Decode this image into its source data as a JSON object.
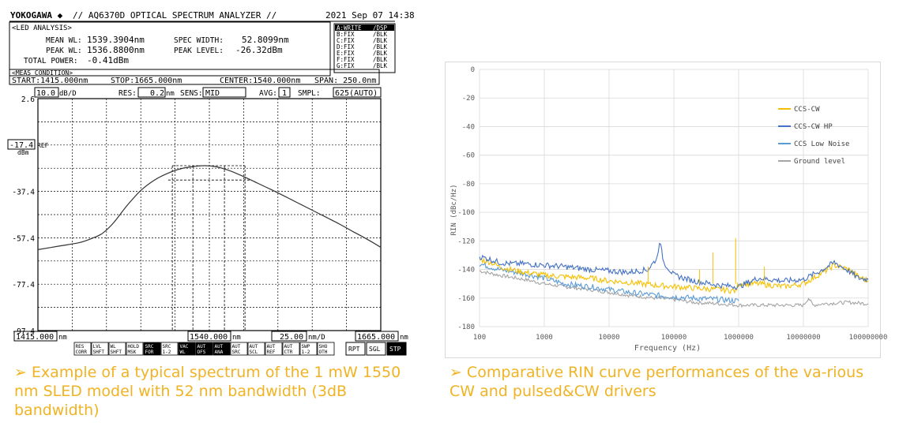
{
  "left_chart": {
    "brand": "YOKOGAWA ◆",
    "title": "// AQ6370D OPTICAL SPECTRUM ANALYZER //",
    "date": "2021 Sep 07 14:38",
    "analysis": {
      "heading": "<LED ANALYSIS>",
      "mean_wl_label": "MEAN WL:",
      "mean_wl_value": "1539.3904nm",
      "peak_wl_label": "PEAK WL:",
      "peak_wl_value": "1536.8800nm",
      "total_power_label": "TOTAL POWER:",
      "total_power_value": "-0.41dBm",
      "spec_width_label": "SPEC WIDTH:",
      "spec_width_value": "52.8099nm",
      "peak_level_label": "PEAK LEVEL:",
      "peak_level_value": "-26.32dBm"
    },
    "trace_status": [
      {
        "trace": "A:WRITE",
        "mode": "/DSP"
      },
      {
        "trace": "B:FIX",
        "mode": "/BLK"
      },
      {
        "trace": "C:FIX",
        "mode": "/BLK"
      },
      {
        "trace": "D:FIX",
        "mode": "/BLK"
      },
      {
        "trace": "E:FIX",
        "mode": "/BLK"
      },
      {
        "trace": "F:FIX",
        "mode": "/BLK"
      },
      {
        "trace": "G:FIX",
        "mode": "/BLK"
      }
    ],
    "meas": {
      "heading": "<MEAS CONDITION>",
      "start": "START:1415.000nm",
      "stop": "STOP:1665.000nm",
      "center": "CENTER:1540.000nm",
      "span": "SPAN: 250.0nm"
    },
    "settings": {
      "scale_value": "10.0",
      "scale_unit": "dB/D",
      "res_label": "RES:",
      "res_value": "0.2",
      "res_unit": "nm",
      "sens_label": "SENS:",
      "sens_value": "MID",
      "avg_label": "AVG:",
      "avg_value": "1",
      "smpl_label": "SMPL:",
      "smpl_value": "625(AUTO)"
    },
    "ref": {
      "value": "-17.4",
      "label": "REF",
      "unit": "dBm"
    },
    "bottom": {
      "start": "1415.000",
      "start_unit": "nm",
      "center": "1540.000",
      "center_unit": "nm",
      "div": "25.00",
      "div_unit": "nm/D",
      "stop": "1665.000",
      "stop_unit": "nm"
    },
    "softkeys": [
      {
        "top": "RES",
        "bot": "CORR"
      },
      {
        "top": "LVL",
        "bot": "SHFT"
      },
      {
        "top": "WL",
        "bot": "SHFT"
      },
      {
        "top": "HOLD",
        "bot": "MSK"
      },
      {
        "top": "SRC",
        "bot": "FOR",
        "inv": true
      },
      {
        "top": "SRC",
        "bot": "1-2"
      },
      {
        "top": "VAC",
        "bot": "WL",
        "inv": true
      },
      {
        "top": "AUT",
        "bot": "OFS",
        "inv": true
      },
      {
        "top": "AUT",
        "bot": "ANA",
        "inv": true
      },
      {
        "top": "AUT",
        "bot": "SRC"
      },
      {
        "top": "AUT",
        "bot": "SCL"
      },
      {
        "top": "AUT",
        "bot": "REF"
      },
      {
        "top": "AUT",
        "bot": "CTR"
      },
      {
        "top": "SWP",
        "bot": "1-2"
      },
      {
        "top": "SHO",
        "bot": "OTH"
      }
    ],
    "buttons": {
      "rpt": "RPT",
      "sgl": "SGL",
      "stp": "STP"
    }
  },
  "chart_data": [
    {
      "type": "line",
      "title": "",
      "x_range": [
        1415,
        1665
      ],
      "y_range": [
        -97.4,
        2.6
      ],
      "y_ticks": [
        "2.6",
        "",
        "-17.4",
        "",
        "-37.4",
        "",
        "-57.4",
        "",
        "-77.4",
        "",
        "-97.4"
      ],
      "x_ticks": [
        "1415.000",
        "1540.000",
        "1665.000"
      ],
      "grid": true,
      "series": [
        {
          "name": "",
          "x": [
            1415,
            1430,
            1445,
            1455,
            1462,
            1470,
            1480,
            1490,
            1500,
            1510,
            1520,
            1530,
            1537,
            1545,
            1555,
            1565,
            1575,
            1585,
            1595,
            1605,
            1615,
            1625,
            1635,
            1645,
            1655,
            1665
          ],
          "y": [
            -62.5,
            -61.0,
            -59.5,
            -57.5,
            -55.5,
            -51.0,
            -43.5,
            -37.0,
            -32.5,
            -29.5,
            -27.5,
            -26.6,
            -26.3,
            -26.8,
            -28.5,
            -31.0,
            -33.8,
            -36.6,
            -39.5,
            -42.5,
            -45.5,
            -48.5,
            -51.5,
            -54.8,
            -58.0,
            -61.5
          ]
        }
      ]
    },
    {
      "type": "line",
      "title": "",
      "xlabel": "Frequency (Hz)",
      "ylabel": "RIN (dBc/Hz)",
      "x_scale": "log",
      "x_range": [
        100,
        100000000
      ],
      "y_range": [
        -180,
        0
      ],
      "x_ticks": [
        "100",
        "1000",
        "10000",
        "100000",
        "1000000",
        "10000000",
        "100000000"
      ],
      "y_ticks": [
        "0",
        "-20",
        "-40",
        "-60",
        "-80",
        "-100",
        "-120",
        "-140",
        "-160",
        "-180"
      ],
      "grid": true,
      "legend_position": "top-right",
      "series": [
        {
          "name": "CCS-CW",
          "color": "#f5c000",
          "x": [
            100,
            150,
            200,
            300,
            500,
            1000,
            2000,
            5000,
            10000,
            20000,
            50000,
            100000,
            200000,
            500000,
            900000,
            1000000,
            2000000,
            5000000,
            10000000,
            20000000,
            30000000,
            50000000,
            70000000,
            100000000
          ],
          "y": [
            -133,
            -135,
            -138,
            -140,
            -142,
            -144,
            -145,
            -146,
            -148,
            -149,
            -151,
            -152,
            -153,
            -154,
            -155,
            -150,
            -150,
            -152,
            -150,
            -142,
            -137,
            -140,
            -145,
            -148
          ]
        },
        {
          "name": "CCS-CW HP",
          "color": "#4472c4",
          "x": [
            100,
            150,
            200,
            300,
            500,
            1000,
            2000,
            5000,
            10000,
            20000,
            40000,
            55000,
            60000,
            70000,
            100000,
            200000,
            500000,
            1000000,
            2000000,
            5000000,
            10000000,
            20000000,
            30000000,
            50000000,
            70000000,
            100000000
          ],
          "y": [
            -131,
            -133,
            -135,
            -136,
            -136,
            -137,
            -138,
            -140,
            -141,
            -142,
            -140,
            -132,
            -120,
            -135,
            -144,
            -148,
            -151,
            -152,
            -146,
            -148,
            -147,
            -140,
            -135,
            -141,
            -146,
            -147
          ]
        },
        {
          "name": "CCS Low Noise",
          "color": "#5b9bd5",
          "x": [
            100,
            200,
            500,
            1000,
            2000,
            5000,
            10000,
            20000,
            50000,
            100000,
            200000,
            500000,
            1000000
          ],
          "y": [
            -136,
            -140,
            -143,
            -146,
            -150,
            -152,
            -154,
            -156,
            -158,
            -159,
            -160,
            -161,
            -162
          ]
        },
        {
          "name": "Ground level",
          "color": "#a5a5a5",
          "x": [
            100,
            200,
            500,
            1000,
            2000,
            5000,
            10000,
            20000,
            50000,
            100000,
            200000,
            500000,
            1000000,
            3000000,
            10000000,
            12000000,
            14000000,
            20000000,
            50000000,
            100000000
          ],
          "y": [
            -141,
            -144,
            -147,
            -150,
            -152,
            -154,
            -156,
            -158,
            -160,
            -161,
            -163,
            -164,
            -165,
            -165,
            -165,
            -160,
            -165,
            -164,
            -163,
            -164
          ]
        }
      ]
    }
  ],
  "captions": {
    "left_arrow": "➢",
    "left": "Example of a typical spectrum of the 1 mW 1550 nm SLED model with 52 nm bandwidth (3dB bandwidth)",
    "right_arrow": "➢",
    "right": "Comparative RIN curve performances of the va-rious CW and pulsed&CW drivers"
  }
}
